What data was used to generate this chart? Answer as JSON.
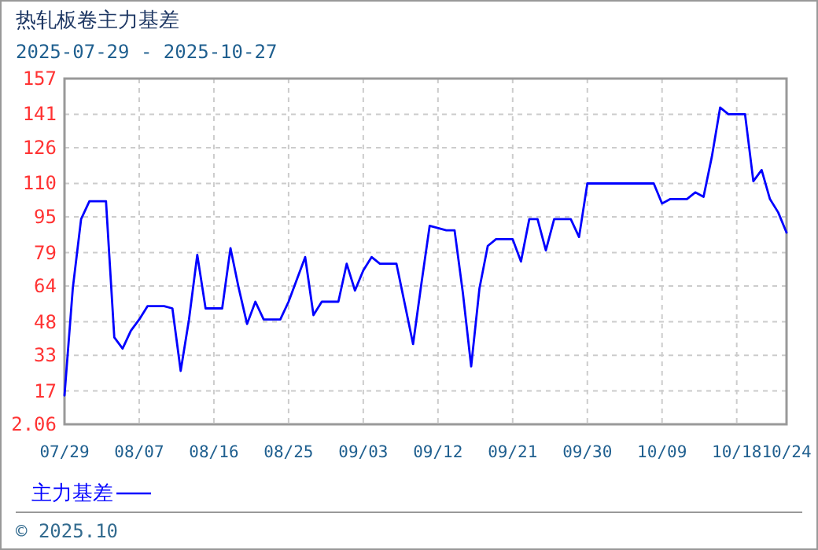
{
  "chart_data": {
    "type": "line",
    "title": "热轧板卷主力基差",
    "subtitle": "2025-07-29 - 2025-10-27",
    "x": [
      "2025-07-29",
      "2025-07-30",
      "2025-07-31",
      "2025-08-01",
      "2025-08-03",
      "2025-08-04",
      "2025-08-05",
      "2025-08-06",
      "2025-08-07",
      "2025-08-08",
      "2025-08-10",
      "2025-08-11",
      "2025-08-12",
      "2025-08-13",
      "2025-08-14",
      "2025-08-15",
      "2025-08-17",
      "2025-08-18",
      "2025-08-19",
      "2025-08-20",
      "2025-08-21",
      "2025-08-22",
      "2025-08-24",
      "2025-08-25",
      "2025-08-27",
      "2025-08-28",
      "2025-08-29",
      "2025-08-31",
      "2025-09-01",
      "2025-09-02",
      "2025-09-03",
      "2025-09-04",
      "2025-09-05",
      "2025-09-07",
      "2025-09-08",
      "2025-09-09",
      "2025-09-10",
      "2025-09-11",
      "2025-09-13",
      "2025-09-14",
      "2025-09-15",
      "2025-09-16",
      "2025-09-17",
      "2025-09-18",
      "2025-09-19",
      "2025-09-21",
      "2025-09-22",
      "2025-09-23",
      "2025-09-24",
      "2025-09-25",
      "2025-09-26",
      "2025-09-28",
      "2025-09-29",
      "2025-09-30",
      "2025-10-08",
      "2025-10-09",
      "2025-10-10",
      "2025-10-12",
      "2025-10-13",
      "2025-10-14",
      "2025-10-15",
      "2025-10-16",
      "2025-10-17",
      "2025-10-19",
      "2025-10-20",
      "2025-10-21",
      "2025-10-22",
      "2025-10-23",
      "2025-10-24"
    ],
    "series": [
      {
        "name": "主力基差",
        "color": "#0000ff",
        "values": [
          15,
          63,
          94,
          102,
          102,
          41,
          36,
          44,
          49,
          55,
          55,
          54,
          26,
          49,
          78,
          54,
          54,
          81,
          63,
          47,
          57,
          49,
          49,
          57,
          77,
          51,
          57,
          57,
          74,
          62,
          71,
          77,
          74,
          74,
          56,
          38,
          65,
          91,
          89,
          89,
          61,
          28,
          63,
          82,
          85,
          85,
          75,
          94,
          94,
          80,
          94,
          94,
          86,
          110,
          110,
          101,
          103,
          103,
          106,
          104,
          122,
          144,
          141,
          141,
          111,
          116,
          103,
          97,
          88
        ]
      }
    ],
    "xlim": [
      "2025-07-29",
      "2025-10-24"
    ],
    "xticks": [
      {
        "value": "2025-07-29",
        "label": "07/29"
      },
      {
        "value": "2025-08-07",
        "label": "08/07"
      },
      {
        "value": "2025-08-16",
        "label": "08/16"
      },
      {
        "value": "2025-08-25",
        "label": "08/25"
      },
      {
        "value": "2025-09-03",
        "label": "09/03"
      },
      {
        "value": "2025-09-12",
        "label": "09/12"
      },
      {
        "value": "2025-09-21",
        "label": "09/21"
      },
      {
        "value": "2025-09-30",
        "label": "09/30"
      },
      {
        "value": "2025-10-09",
        "label": "10/09"
      },
      {
        "value": "2025-10-18",
        "label": "10/18"
      },
      {
        "value": "2025-10-24",
        "label": "10/24"
      }
    ],
    "ylim": [
      2.06,
      157
    ],
    "yticks": [
      2.06,
      17,
      33,
      48,
      64,
      79,
      95,
      110,
      126,
      141,
      157
    ],
    "grid": true,
    "legend": "bottom left",
    "line_style": "solid",
    "annotations": [
      "© 2025.10"
    ]
  }
}
